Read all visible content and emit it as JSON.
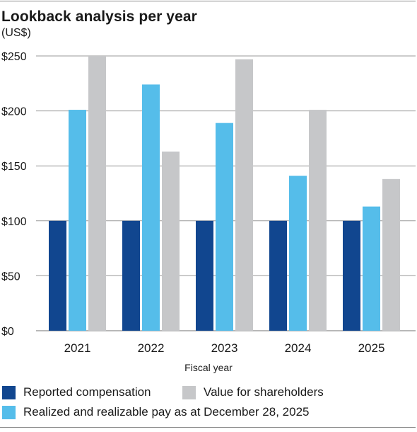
{
  "chart_data": {
    "type": "bar",
    "title": "Lookback analysis per year",
    "unit_label": "(US$)",
    "xlabel": "Fiscal year",
    "ylabel": "",
    "categories": [
      "2021",
      "2022",
      "2023",
      "2024",
      "2025"
    ],
    "ylim": [
      0,
      250
    ],
    "yticks": [
      0,
      50,
      100,
      150,
      200,
      250
    ],
    "ytick_labels": [
      "$0",
      "$50",
      "$100",
      "$150",
      "$200",
      "$250"
    ],
    "grid": true,
    "legend_position": "bottom",
    "series": [
      {
        "name": "Reported compensation",
        "color": "#11468f",
        "values": [
          100,
          100,
          100,
          100,
          100
        ]
      },
      {
        "name": "Realized and realizable pay as at December 28, 2025",
        "color": "#55bdea",
        "values": [
          201,
          224,
          189,
          141,
          113
        ]
      },
      {
        "name": "Value for shareholders",
        "color": "#c6c7c9",
        "values": [
          250,
          163,
          247,
          201,
          138
        ]
      }
    ]
  }
}
